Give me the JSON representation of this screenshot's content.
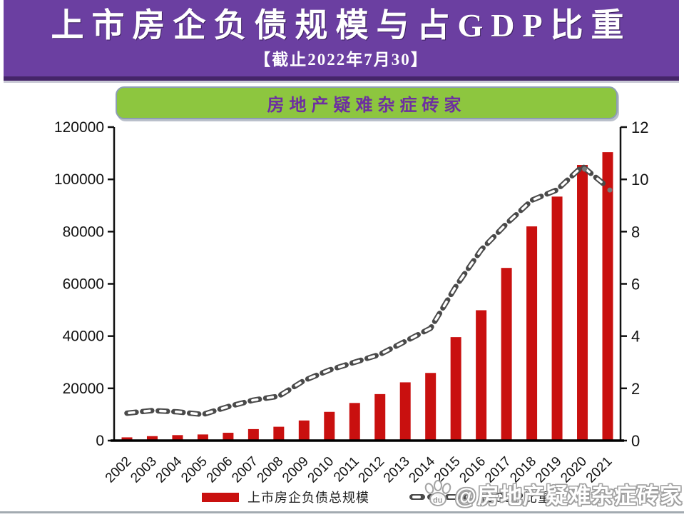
{
  "header": {
    "title": "上市房企负债规模与占GDP比重",
    "subtitle": "【截止2022年7月30】",
    "bg_color": "#6b3fa1",
    "text_color": "#ffffff"
  },
  "banner": {
    "label": "房地产疑难杂症砖家",
    "bg_color": "#8dc63f",
    "text_color": "#6d2fa0"
  },
  "chart_data": {
    "type": "bar",
    "title": "上市房企负债规模与占GDP比重",
    "categories": [
      "2002",
      "2003",
      "2004",
      "2005",
      "2006",
      "2007",
      "2008",
      "2009",
      "2010",
      "2011",
      "2012",
      "2013",
      "2014",
      "2015",
      "2016",
      "2017",
      "2018",
      "2019",
      "2020",
      "2021"
    ],
    "series": [
      {
        "name": "上市房企负债总规模",
        "type": "bar",
        "axis": "left",
        "color": "#c9100f",
        "values": [
          1250,
          1700,
          2100,
          2350,
          3000,
          4400,
          5300,
          7700,
          11000,
          14400,
          17800,
          22300,
          25900,
          39600,
          49900,
          66100,
          82000,
          93400,
          105500,
          110400
        ]
      },
      {
        "name": "占GDP比重",
        "type": "line",
        "style": "dashed",
        "axis": "right",
        "color": "#4a4a4a",
        "values": [
          1.05,
          1.15,
          1.1,
          1.0,
          1.3,
          1.55,
          1.7,
          2.3,
          2.7,
          3.0,
          3.3,
          3.8,
          4.3,
          5.9,
          7.3,
          8.3,
          9.2,
          9.6,
          10.5,
          9.7
        ],
        "marker_points": [
          {
            "category": "2020",
            "value": 10.5
          },
          {
            "category": "2021",
            "value": 9.7
          }
        ]
      }
    ],
    "left_axis": {
      "min": 0,
      "max": 120000,
      "tick_labels": [
        "0",
        "20000",
        "40000",
        "60000",
        "80000",
        "100000",
        "120000"
      ]
    },
    "right_axis": {
      "min": 0,
      "max": 12,
      "tick_labels": [
        "0",
        "2",
        "4",
        "6",
        "8",
        "10",
        "12"
      ]
    },
    "grid": false,
    "legend_position": "bottom"
  },
  "legend": {
    "items": [
      {
        "label": "上市房企负债总规模",
        "swatch": "red-bar"
      },
      {
        "label": "占GDP比重",
        "swatch": "dashed-line"
      }
    ]
  },
  "watermark": {
    "icon": "paw-icon",
    "icon_label": "du",
    "text": "@房地产疑难杂症砖家"
  }
}
